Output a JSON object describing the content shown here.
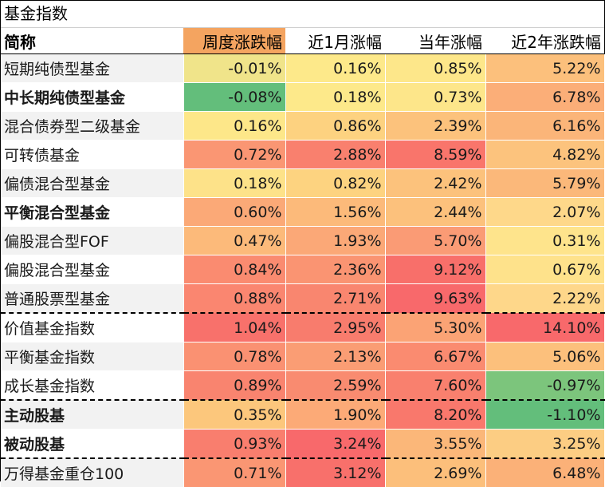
{
  "title": "基金指数",
  "headers": [
    "简称",
    "周度涨跌幅",
    "近1月涨幅",
    "当年涨幅",
    "近2年涨跌幅"
  ],
  "rows": [
    {
      "name": "短期纯债型基金",
      "bold": false,
      "vals": [
        "-0.01%",
        "0.16%",
        "0.85%",
        "5.22%"
      ],
      "colors": [
        "#f0e48a",
        "#fde98a",
        "#fde78a",
        "#fcc07c"
      ]
    },
    {
      "name": "中长期纯债型基金",
      "bold": true,
      "vals": [
        "-0.08%",
        "0.18%",
        "0.73%",
        "6.78%"
      ],
      "colors": [
        "#63be7b",
        "#fde98a",
        "#fde68a",
        "#fbae78"
      ]
    },
    {
      "name": "混合债券型二级基金",
      "bold": false,
      "vals": [
        "0.16%",
        "0.86%",
        "2.39%",
        "6.16%"
      ],
      "colors": [
        "#fde789",
        "#fdd280",
        "#fcc27c",
        "#fbb579"
      ]
    },
    {
      "name": "可转债基金",
      "bold": false,
      "vals": [
        "0.72%",
        "2.88%",
        "8.59%",
        "4.82%"
      ],
      "colors": [
        "#fa9673",
        "#f9806e",
        "#f9756b",
        "#fcc37d"
      ]
    },
    {
      "name": "偏债混合型基金",
      "bold": false,
      "vals": [
        "0.18%",
        "0.82%",
        "2.42%",
        "5.79%"
      ],
      "colors": [
        "#fde289",
        "#fdd380",
        "#fcc27c",
        "#fbb87a"
      ]
    },
    {
      "name": "平衡混合型基金",
      "bold": true,
      "vals": [
        "0.60%",
        "1.56%",
        "2.44%",
        "2.07%"
      ],
      "colors": [
        "#fba977",
        "#fcba7a",
        "#fcc17c",
        "#fed88a"
      ]
    },
    {
      "name": "偏股混合型FOF",
      "bold": false,
      "vals": [
        "0.47%",
        "1.93%",
        "5.70%",
        "0.31%"
      ],
      "colors": [
        "#fcba7a",
        "#fba877",
        "#fa9b75",
        "#fee48c"
      ]
    },
    {
      "name": "偏股混合型基金",
      "bold": false,
      "vals": [
        "0.84%",
        "2.36%",
        "9.12%",
        "0.67%"
      ],
      "colors": [
        "#fa8b70",
        "#fa9472",
        "#f86f6a",
        "#fee28b"
      ]
    },
    {
      "name": "普通股票型基金",
      "bold": false,
      "vals": [
        "0.88%",
        "2.71%",
        "9.63%",
        "2.22%"
      ],
      "colors": [
        "#fa8670",
        "#f9866f",
        "#f8696b",
        "#fed78a"
      ],
      "dash": true
    },
    {
      "name": "价值基金指数",
      "bold": false,
      "vals": [
        "1.04%",
        "2.95%",
        "5.30%",
        "14.10%"
      ],
      "colors": [
        "#f8716b",
        "#f87c6d",
        "#fba375",
        "#f8696b"
      ]
    },
    {
      "name": "平衡基金指数",
      "bold": false,
      "vals": [
        "0.78%",
        "2.13%",
        "6.67%",
        "5.06%"
      ],
      "colors": [
        "#fa9172",
        "#fa9d74",
        "#fa8b70",
        "#fcc07c"
      ]
    },
    {
      "name": "成长基金指数",
      "bold": false,
      "vals": [
        "0.89%",
        "2.59%",
        "7.60%",
        "-0.97%"
      ],
      "colors": [
        "#f9846f",
        "#f98b70",
        "#f9806e",
        "#7cc57c"
      ],
      "dash": true
    },
    {
      "name": "主动股基",
      "bold": true,
      "vals": [
        "0.35%",
        "1.90%",
        "8.20%",
        "-1.10%"
      ],
      "colors": [
        "#fcc77c",
        "#fcaa77",
        "#f9786c",
        "#63be7b"
      ]
    },
    {
      "name": "被动股基",
      "bold": true,
      "vals": [
        "0.93%",
        "3.24%",
        "3.55%",
        "3.25%"
      ],
      "colors": [
        "#f97e6e",
        "#f8696b",
        "#fbb779",
        "#fccd83"
      ],
      "dash": true
    },
    {
      "name": "万得基金重仓100",
      "bold": false,
      "vals": [
        "0.71%",
        "3.12%",
        "2.69%",
        "6.48%"
      ],
      "colors": [
        "#fa9673",
        "#f8706b",
        "#fcbf7b",
        "#fbb178"
      ]
    }
  ]
}
